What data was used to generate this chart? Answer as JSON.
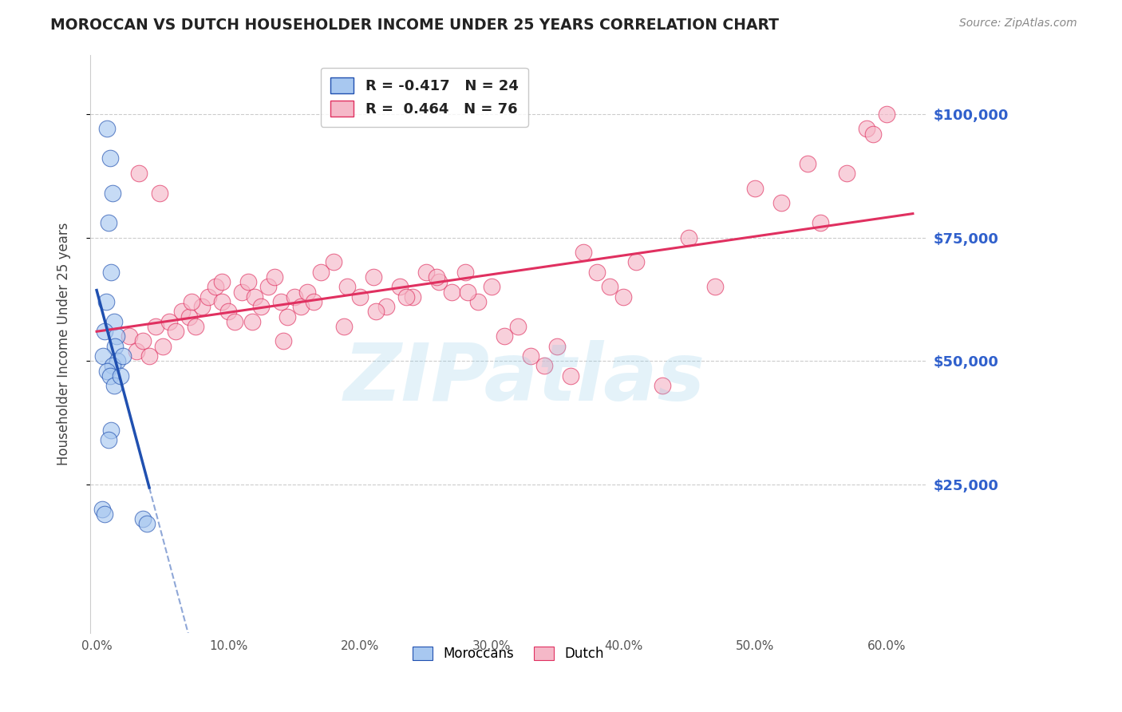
{
  "title": "MOROCCAN VS DUTCH HOUSEHOLDER INCOME UNDER 25 YEARS CORRELATION CHART",
  "source": "Source: ZipAtlas.com",
  "ylabel": "Householder Income Under 25 years",
  "watermark": "ZIPatlas",
  "moroccan_color": "#A8C8F0",
  "dutch_color": "#F5B8C8",
  "moroccan_line_color": "#2050B0",
  "dutch_line_color": "#E03060",
  "ytick_labels": [
    "$25,000",
    "$50,000",
    "$75,000",
    "$100,000"
  ],
  "ytick_values": [
    25000,
    50000,
    75000,
    100000
  ],
  "ytick_color": "#3060CC",
  "xtick_labels": [
    "0.0%",
    "10.0%",
    "20.0%",
    "30.0%",
    "40.0%",
    "50.0%",
    "60.0%"
  ],
  "xtick_values": [
    0.0,
    10.0,
    20.0,
    30.0,
    40.0,
    50.0,
    60.0
  ],
  "xlim": [
    -0.5,
    63.0
  ],
  "ylim": [
    -5000,
    112000
  ],
  "moroccan_x": [
    0.8,
    1.0,
    1.2,
    0.9,
    1.1,
    0.7,
    1.3,
    0.6,
    1.5,
    1.4,
    0.5,
    1.6,
    1.2,
    0.8,
    1.0,
    1.3,
    1.1,
    0.9,
    2.0,
    1.8,
    0.4,
    0.6,
    3.5,
    3.8
  ],
  "moroccan_y": [
    97000,
    91000,
    84000,
    78000,
    68000,
    62000,
    58000,
    56000,
    55000,
    53000,
    51000,
    50000,
    49000,
    48000,
    47000,
    45000,
    36000,
    34000,
    51000,
    47000,
    20000,
    19000,
    18000,
    17000
  ],
  "dutch_x": [
    2.5,
    3.0,
    3.5,
    4.0,
    4.5,
    5.0,
    5.5,
    6.0,
    6.5,
    7.0,
    7.5,
    8.0,
    8.5,
    9.0,
    9.5,
    10.0,
    10.5,
    11.0,
    11.5,
    12.0,
    12.5,
    13.0,
    13.5,
    14.0,
    14.5,
    15.0,
    15.5,
    16.0,
    17.0,
    18.0,
    19.0,
    20.0,
    21.0,
    22.0,
    23.0,
    24.0,
    25.0,
    26.0,
    27.0,
    28.0,
    29.0,
    30.0,
    31.0,
    32.0,
    33.0,
    34.0,
    35.0,
    36.0,
    37.0,
    38.0,
    39.0,
    40.0,
    41.0,
    43.0,
    45.0,
    47.0,
    50.0,
    52.0,
    54.0,
    55.0,
    57.0,
    58.5,
    59.0,
    60.0,
    3.2,
    4.8,
    7.2,
    9.5,
    11.8,
    14.2,
    16.5,
    18.8,
    21.2,
    23.5,
    25.8,
    28.2
  ],
  "dutch_y": [
    55000,
    52000,
    54000,
    51000,
    57000,
    53000,
    58000,
    56000,
    60000,
    59000,
    57000,
    61000,
    63000,
    65000,
    62000,
    60000,
    58000,
    64000,
    66000,
    63000,
    61000,
    65000,
    67000,
    62000,
    59000,
    63000,
    61000,
    64000,
    68000,
    70000,
    65000,
    63000,
    67000,
    61000,
    65000,
    63000,
    68000,
    66000,
    64000,
    68000,
    62000,
    65000,
    55000,
    57000,
    51000,
    49000,
    53000,
    47000,
    72000,
    68000,
    65000,
    63000,
    70000,
    45000,
    75000,
    65000,
    85000,
    82000,
    90000,
    78000,
    88000,
    97000,
    96000,
    100000,
    88000,
    84000,
    62000,
    66000,
    58000,
    54000,
    62000,
    57000,
    60000,
    63000,
    67000,
    64000
  ],
  "background_color": "#FFFFFF",
  "grid_color": "#CCCCCC",
  "title_color": "#222222",
  "source_color": "#888888"
}
